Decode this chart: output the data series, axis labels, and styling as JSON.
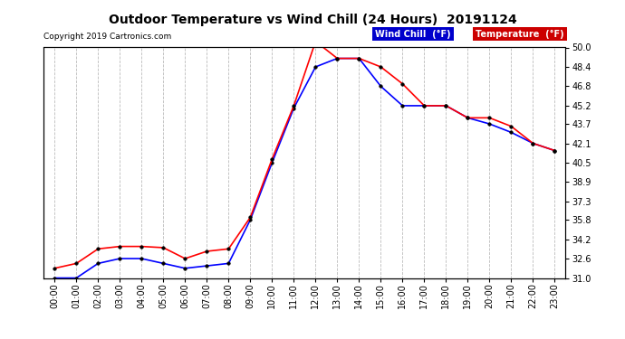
{
  "title": "Outdoor Temperature vs Wind Chill (24 Hours)  20191124",
  "copyright": "Copyright 2019 Cartronics.com",
  "x_labels": [
    "00:00",
    "01:00",
    "02:00",
    "03:00",
    "04:00",
    "05:00",
    "06:00",
    "07:00",
    "08:00",
    "09:00",
    "10:00",
    "11:00",
    "12:00",
    "13:00",
    "14:00",
    "15:00",
    "16:00",
    "17:00",
    "18:00",
    "19:00",
    "20:00",
    "21:00",
    "22:00",
    "23:00"
  ],
  "temperature": [
    31.8,
    32.2,
    33.4,
    33.6,
    33.6,
    33.5,
    32.6,
    33.2,
    33.4,
    36.0,
    40.8,
    45.2,
    50.5,
    49.1,
    49.1,
    48.4,
    47.0,
    45.2,
    45.2,
    44.2,
    44.2,
    43.5,
    42.1,
    41.5
  ],
  "wind_chill": [
    31.0,
    31.0,
    32.2,
    32.6,
    32.6,
    32.2,
    31.8,
    32.0,
    32.2,
    35.8,
    40.5,
    45.0,
    48.4,
    49.1,
    49.1,
    46.8,
    45.2,
    45.2,
    45.2,
    44.2,
    43.7,
    43.0,
    42.1,
    41.5
  ],
  "temp_color": "#ff0000",
  "wind_chill_color": "#0000ff",
  "ylim_min": 31.0,
  "ylim_max": 50.0,
  "ytick_right": [
    31.0,
    32.6,
    34.2,
    35.8,
    37.3,
    38.9,
    40.5,
    42.1,
    43.7,
    45.2,
    46.8,
    48.4,
    50.0
  ],
  "background_color": "#ffffff",
  "grid_color": "#bbbbbb",
  "legend_wind_chill_bg": "#0000cc",
  "legend_temp_bg": "#cc0000",
  "legend_text_color": "#ffffff"
}
